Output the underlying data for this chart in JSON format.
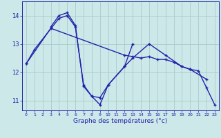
{
  "background_color": "#cce8e8",
  "line_color": "#2222aa",
  "grid_color": "#aacccc",
  "xlabel": "Graphe des températures (°c)",
  "xlim": [
    -0.5,
    23.5
  ],
  "ylim": [
    10.65,
    14.5
  ],
  "xticks": [
    0,
    1,
    2,
    3,
    4,
    5,
    6,
    7,
    8,
    9,
    10,
    11,
    12,
    13,
    14,
    15,
    16,
    17,
    18,
    19,
    20,
    21,
    22,
    23
  ],
  "yticks": [
    11,
    12,
    13,
    14
  ],
  "series1_x": [
    0,
    1,
    4,
    5,
    6,
    7,
    8,
    9,
    10,
    12,
    13,
    15,
    17,
    19,
    20,
    22
  ],
  "series1_y": [
    12.3,
    12.8,
    13.9,
    14.0,
    13.6,
    11.55,
    11.15,
    10.85,
    11.55,
    12.2,
    12.5,
    13.0,
    12.6,
    12.2,
    12.1,
    11.75
  ],
  "series2_x": [
    3,
    4,
    5,
    6,
    7,
    8,
    9,
    10,
    12,
    13
  ],
  "series2_y": [
    13.6,
    14.0,
    14.1,
    13.65,
    11.5,
    11.15,
    11.1,
    11.55,
    12.2,
    13.0
  ],
  "series3_x": [
    0,
    3,
    12,
    13,
    14,
    15,
    16,
    17,
    18,
    19,
    20,
    21,
    22,
    23
  ],
  "series3_y": [
    12.3,
    13.55,
    12.6,
    12.55,
    12.5,
    12.55,
    12.45,
    12.45,
    12.35,
    12.2,
    12.1,
    12.05,
    11.45,
    10.85
  ]
}
